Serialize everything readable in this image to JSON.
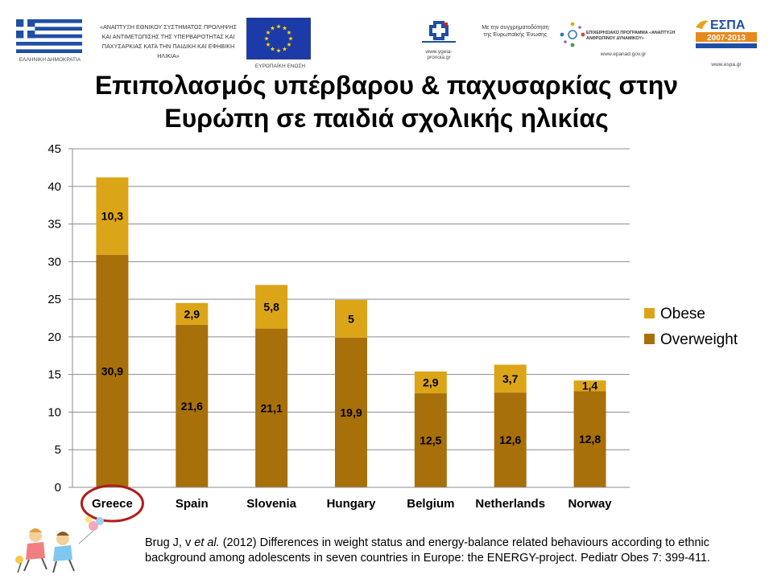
{
  "header": {
    "greek_flag_caption": "ΕΛΛΗΝΙΚΗ ΔΗΜΟΚΡΑΤΙΑ",
    "project_text": "«ΑΝΑΠΤΥΞΗ ΕΘΝΙΚΟΥ ΣΥΣΤΗΜΑΤΟΣ ΠΡΟΛΗΨΗΣ ΚΑΙ ΑΝΤΙΜΕΤΩΠΙΣΗΣ ΤΗΣ ΥΠΕΡΒΑΡΟΤΗΤΑΣ ΚΑΙ ΠΑΧΥΣΑΡΚΙΑΣ ΚΑΤΑ ΤΗΝ ΠΑΙΔΙΚΗ ΚΑΙ ΕΦΗΒΙΚΗ ΗΛΙΚΙΑ»",
    "eu_caption": "ΕΥΡΩΠΑΪΚΗ ΕΝΩΣΗ",
    "ministry_url": "www.ygeia-pronoia.gr",
    "cofunding_text": "Με την συγχρηματοδότηση της Ευρωπαϊκής Ένωσης",
    "program_name": "ΕΠΙΧΕΙΡΗΣΙΑΚΟ ΠΡΟΓΡΑΜΜΑ «ΑΝΑΠΤΥΞΗ ΑΝΘΡΩΠΙΝΟΥ ΔΥΝΑΜΙΚΟΥ»",
    "program_url": "www.epanad.gov.gr",
    "espa_title": "ΕΣΠΑ",
    "espa_years": "2007-2013",
    "espa_url": "www.espa.gr"
  },
  "title_line1": "Επιπολασμός υπέρβαρου & παχυσαρκίας στην",
  "title_line2": "Ευρώπη σε παιδιά σχολικής ηλικίας",
  "chart_data": {
    "type": "bar",
    "stacked": true,
    "categories": [
      "Greece",
      "Spain",
      "Slovenia",
      "Hungary",
      "Belgium",
      "Netherlands",
      "Norway"
    ],
    "series": [
      {
        "name": "Overweight",
        "values": [
          30.9,
          21.6,
          21.1,
          19.9,
          12.5,
          12.6,
          12.8
        ],
        "labels": [
          "30,9",
          "21,6",
          "21,1",
          "19,9",
          "12,5",
          "12,6",
          "12,8"
        ],
        "color": "#a8700a"
      },
      {
        "name": "Obese",
        "values": [
          10.3,
          2.9,
          5.8,
          5,
          2.9,
          3.7,
          1.4
        ],
        "labels": [
          "10,3",
          "2,9",
          "5,8",
          "5",
          "2,9",
          "3,7",
          "1,4"
        ],
        "color": "#dca518"
      }
    ],
    "ylim": [
      0,
      45
    ],
    "yticks": [
      0,
      5,
      10,
      15,
      20,
      25,
      30,
      35,
      40,
      45
    ],
    "grid": true,
    "legend_position": "right",
    "highlight_category": "Greece",
    "highlight_color": "#b01c1c"
  },
  "citation": {
    "authors": "Brug J, v ",
    "etal": "et al.",
    "rest": " (2012) Differences in weight status and energy-balance related behaviours according to ethnic background among adolescents in seven countries in Europe: the ENERGY-project. Pediatr Obes 7: 399-411."
  }
}
